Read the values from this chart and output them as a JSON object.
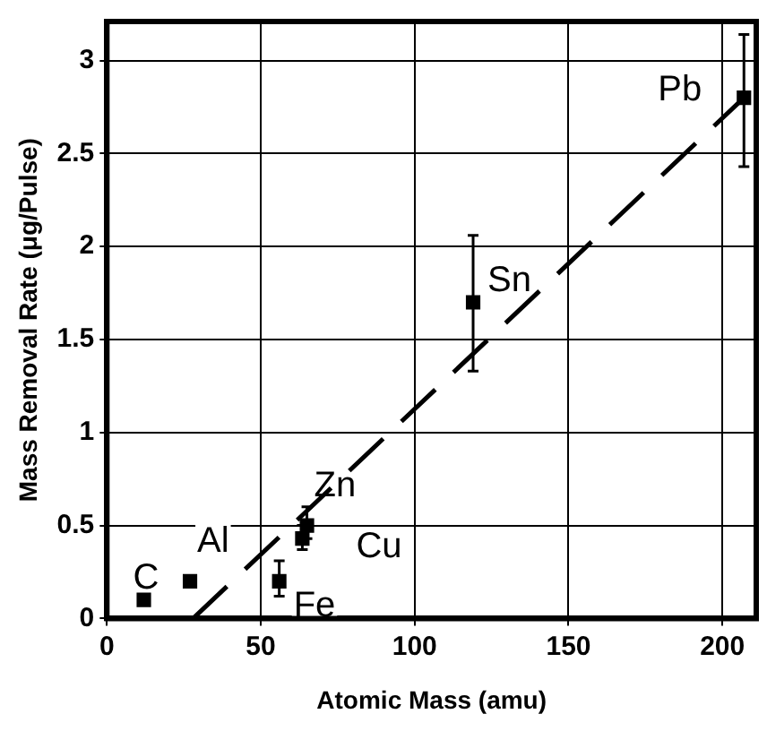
{
  "chart_data": {
    "type": "scatter",
    "xlabel": "Atomic Mass (amu)",
    "ylabel": "Mass Removal Rate (μg/Pulse)",
    "xlim": [
      0,
      211
    ],
    "xticks": [
      0,
      50,
      100,
      150,
      200
    ],
    "ylim": [
      0,
      3.21
    ],
    "yticks": [
      0,
      0.5,
      1,
      1.5,
      2,
      2.5,
      3
    ],
    "grid": true,
    "legend": false,
    "marker": "square",
    "series": [
      {
        "color": "#000000",
        "x": [
          12,
          27,
          56,
          63.5,
          65,
          119,
          207
        ],
        "values": [
          0.1,
          0.2,
          0.2,
          0.43,
          0.5,
          1.7,
          2.8
        ],
        "errors": [
          null,
          null,
          [
            0.12,
            0.31
          ],
          [
            0.37,
            0.5
          ],
          [
            0.43,
            0.6
          ],
          [
            1.33,
            2.06
          ],
          [
            2.43,
            3.14
          ]
        ]
      },
      {
        "type": "line",
        "color": "#000000",
        "line_style": "dashed",
        "marker": "none",
        "x": [
          28,
          207
        ],
        "values": [
          0,
          2.8
        ]
      }
    ],
    "annotations": [
      {
        "text": "C",
        "x": 12,
        "y": 0.1
      },
      {
        "text": "Al",
        "x": 27,
        "y": 0.2
      },
      {
        "text": "Fe",
        "x": 56,
        "y": 0.2
      },
      {
        "text": "Cu",
        "x": 63.5,
        "y": 0.43
      },
      {
        "text": "Zn",
        "x": 65,
        "y": 0.5
      },
      {
        "text": "Sn",
        "x": 119,
        "y": 1.7
      },
      {
        "text": "Pb",
        "x": 207,
        "y": 2.8
      }
    ]
  }
}
